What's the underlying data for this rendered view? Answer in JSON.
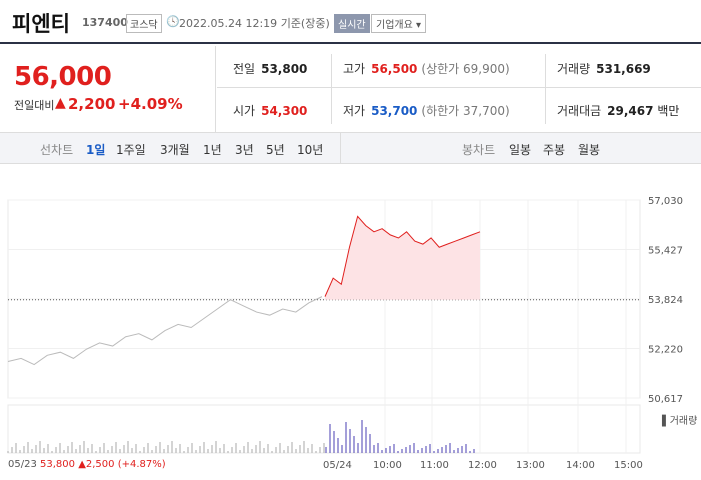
{
  "header": {
    "name": "피엔티",
    "code": "137400",
    "market": "코스닥",
    "clock_icon": "clock-icon",
    "datetime": "2022.05.24 12:19",
    "basis": "기준(장중)",
    "realtime": "실시간",
    "corp_info": "기업개요 ▾"
  },
  "price": {
    "current": "56,000",
    "change_label": "전일대비",
    "arrow": "▲",
    "change": "2,200",
    "percent": "+4.09%"
  },
  "quote": {
    "prev_label": "전일",
    "prev": "53,800",
    "high_label": "고가",
    "high": "56,500",
    "upper": "(상한가 69,900)",
    "volume_label": "거래량",
    "volume": "531,669",
    "open_label": "시가",
    "open": "54,300",
    "low_label": "저가",
    "low": "53,700",
    "lower": "(하한가 37,700)",
    "amount_label": "거래대금",
    "amount": "29,467",
    "amount_unit": "백만"
  },
  "tabs": {
    "line_label": "선차트",
    "line_items": [
      "1일",
      "1주일",
      "3개월",
      "1년",
      "3년",
      "5년",
      "10년"
    ],
    "active": "1일",
    "candle_label": "봉차트",
    "candle_items": [
      "일봉",
      "주봉",
      "월봉"
    ]
  },
  "chart_data": {
    "type": "line",
    "y_ticks": [
      "57,030",
      "55,427",
      "53,824",
      "52,220",
      "50,617"
    ],
    "ylim": [
      50617,
      57030
    ],
    "prev_close": 53800,
    "volume_label": "거래량",
    "x_ticks": [
      "05/23",
      "05/24",
      "10:00",
      "11:00",
      "12:00",
      "13:00",
      "14:00",
      "15:00"
    ],
    "prev_day": [
      51800,
      51900,
      51700,
      52000,
      52100,
      51900,
      52200,
      52400,
      52300,
      52600,
      52700,
      52500,
      52800,
      53000,
      52900,
      53200,
      53500,
      53800,
      53600,
      53400,
      53300,
      53500,
      53400,
      53700,
      53900
    ],
    "today": [
      53900,
      54500,
      54300,
      55500,
      56500,
      56200,
      56000,
      56100,
      55900,
      55800,
      56000,
      55700,
      55600,
      55800,
      55500,
      55600,
      55700,
      55800,
      55900,
      56000
    ],
    "footer_date": "05/23",
    "footer_close": "53,800",
    "footer_change": "▲2,500 (+4.87%)"
  }
}
